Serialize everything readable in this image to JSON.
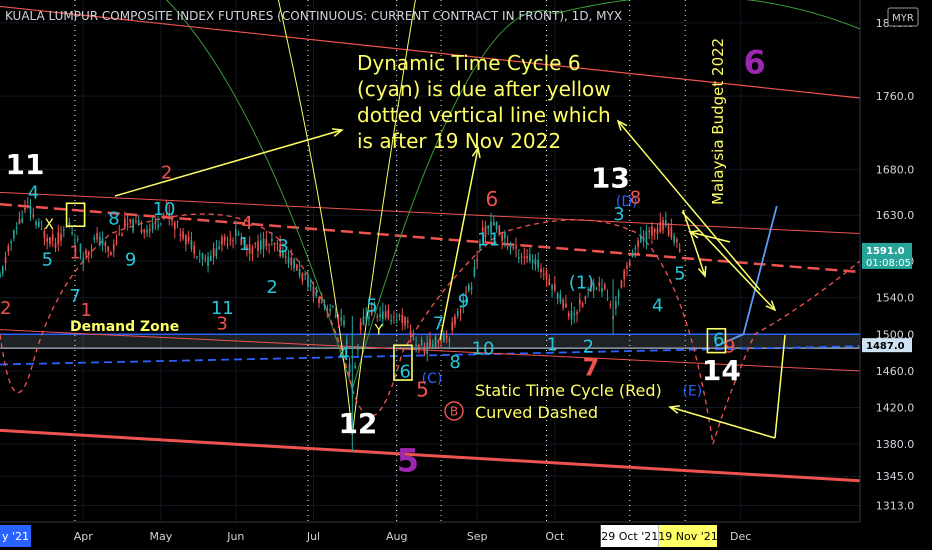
{
  "chart_data": {
    "type": "candlestick",
    "title": "KUALA LUMPUR COMPOSITE INDEX FUTURES (CONTINUOUS: CURRENT CONTRACT IN FRONT), 1D, MYX",
    "currency": "MYR",
    "ylim": [
      1295,
      1865
    ],
    "xlim": [
      0,
      310
    ],
    "y_ticks": [
      "1313.0",
      "1345.0",
      "1380.0",
      "1420.0",
      "1460.0",
      "1500.0",
      "1540.0",
      "1580.0",
      "1630.0",
      "1680.0",
      "1760.0",
      "1840.0"
    ],
    "x_ticks": [
      {
        "label": "Apr",
        "x": 30
      },
      {
        "label": "May",
        "x": 58
      },
      {
        "label": "Jun",
        "x": 85
      },
      {
        "label": "Jul",
        "x": 113
      },
      {
        "label": "Aug",
        "x": 143
      },
      {
        "label": "Sep",
        "x": 172
      },
      {
        "label": "Oct",
        "x": 200
      },
      {
        "label": "Dec",
        "x": 267
      }
    ],
    "date_badges": [
      {
        "label": "29 Oct '21",
        "x": 227,
        "fill": "#ffffff",
        "text": "#000000"
      },
      {
        "label": "19 Nov '21",
        "x": 248,
        "fill": "#ffff66",
        "text": "#000000"
      }
    ],
    "left_date_badge": {
      "label": "y '21",
      "fill": "#2962ff"
    },
    "price_labels": [
      {
        "label": "1591.0",
        "sub": "01:08:05",
        "value": 1591,
        "fill": "#26a69a"
      },
      {
        "label": "1487.0",
        "value": 1487,
        "fill": "#cfe2f3"
      }
    ],
    "candles": {
      "closes": [
        [
          0,
          1560
        ],
        [
          5,
          1610
        ],
        [
          10,
          1640
        ],
        [
          15,
          1612
        ],
        [
          20,
          1600
        ],
        [
          25,
          1620
        ],
        [
          30,
          1585
        ],
        [
          35,
          1605
        ],
        [
          40,
          1590
        ],
        [
          45,
          1620
        ],
        [
          50,
          1618
        ],
        [
          55,
          1615
        ],
        [
          60,
          1635
        ],
        [
          65,
          1612
        ],
        [
          70,
          1595
        ],
        [
          75,
          1580
        ],
        [
          80,
          1600
        ],
        [
          85,
          1610
        ],
        [
          90,
          1592
        ],
        [
          95,
          1600
        ],
        [
          100,
          1595
        ],
        [
          105,
          1580
        ],
        [
          110,
          1560
        ],
        [
          115,
          1540
        ],
        [
          120,
          1525
        ],
        [
          124,
          1510
        ],
        [
          127,
          1440
        ],
        [
          130,
          1510
        ],
        [
          134,
          1525
        ],
        [
          138,
          1520
        ],
        [
          142,
          1520
        ],
        [
          146,
          1515
        ],
        [
          150,
          1490
        ],
        [
          154,
          1485
        ],
        [
          158,
          1495
        ],
        [
          162,
          1500
        ],
        [
          166,
          1530
        ],
        [
          170,
          1555
        ],
        [
          174,
          1610
        ],
        [
          178,
          1620
        ],
        [
          182,
          1605
        ],
        [
          186,
          1590
        ],
        [
          190,
          1585
        ],
        [
          194,
          1575
        ],
        [
          198,
          1560
        ],
        [
          202,
          1540
        ],
        [
          206,
          1520
        ],
        [
          210,
          1535
        ],
        [
          214,
          1555
        ],
        [
          218,
          1550
        ],
        [
          221,
          1520
        ],
        [
          224,
          1555
        ],
        [
          228,
          1590
        ],
        [
          232,
          1605
        ],
        [
          236,
          1615
        ],
        [
          240,
          1620
        ],
        [
          244,
          1600
        ],
        [
          246,
          1591
        ]
      ]
    },
    "annotations": {
      "callout_dynamic": [
        "Dynamic Time Cycle 6",
        "(cyan) is due after yellow",
        "dotted vertical line which",
        "is after 19 Nov 2022"
      ],
      "callout_static": [
        "Static Time Cycle (Red)",
        "Curved Dashed"
      ],
      "demand_zone": "Demand Zone",
      "budget": "Malaysia Budget 2022",
      "wave_labels": [
        {
          "text": "11",
          "x": 2,
          "y": 1675,
          "color": "#ffffff",
          "size": 28
        },
        {
          "text": "4",
          "x": 10,
          "y": 1648,
          "color": "#26c6da",
          "size": 18
        },
        {
          "text": "X",
          "x": 16,
          "y": 1615,
          "color": "#ffff66",
          "size": 14
        },
        {
          "text": "5",
          "x": 15,
          "y": 1575,
          "color": "#26c6da",
          "size": 18
        },
        {
          "text": "2",
          "x": 0,
          "y": 1522,
          "color": "#ef5350",
          "size": 18
        },
        {
          "text": "7",
          "x": 25,
          "y": 1535,
          "color": "#26c6da",
          "size": 18
        },
        {
          "text": "1",
          "x": 29,
          "y": 1520,
          "color": "#ef5350",
          "size": 18
        },
        {
          "text": "1",
          "x": 25,
          "y": 1583,
          "color": "#ef5350",
          "size": 18
        },
        {
          "text": "8",
          "x": 39,
          "y": 1620,
          "color": "#26c6da",
          "size": 18
        },
        {
          "text": "2",
          "x": 58,
          "y": 1670,
          "color": "#ef5350",
          "size": 18
        },
        {
          "text": "10",
          "x": 55,
          "y": 1630,
          "color": "#26c6da",
          "size": 18
        },
        {
          "text": "9",
          "x": 45,
          "y": 1575,
          "color": "#26c6da",
          "size": 18
        },
        {
          "text": "4",
          "x": 87,
          "y": 1615,
          "color": "#ef5350",
          "size": 18
        },
        {
          "text": "1",
          "x": 86,
          "y": 1592,
          "color": "#26c6da",
          "size": 18
        },
        {
          "text": "3",
          "x": 100,
          "y": 1590,
          "color": "#26c6da",
          "size": 18
        },
        {
          "text": "2",
          "x": 96,
          "y": 1545,
          "color": "#26c6da",
          "size": 18
        },
        {
          "text": "11",
          "x": 76,
          "y": 1522,
          "color": "#26c6da",
          "size": 18
        },
        {
          "text": "3",
          "x": 78,
          "y": 1505,
          "color": "#ef5350",
          "size": 18
        },
        {
          "text": "5",
          "x": 132,
          "y": 1525,
          "color": "#26c6da",
          "size": 18
        },
        {
          "text": "Y",
          "x": 135,
          "y": 1500,
          "color": "#ffff66",
          "size": 14
        },
        {
          "text": "4",
          "x": 122,
          "y": 1472,
          "color": "#26c6da",
          "size": 18
        },
        {
          "text": "12",
          "x": 122,
          "y": 1392,
          "color": "#ffffff",
          "size": 28
        },
        {
          "text": "6",
          "x": 144,
          "y": 1453,
          "color": "#26c6da",
          "size": 18
        },
        {
          "text": "(C)",
          "x": 152,
          "y": 1447,
          "color": "#2962ff",
          "size": 14
        },
        {
          "text": "5",
          "x": 150,
          "y": 1432,
          "color": "#ef5350",
          "size": 20
        },
        {
          "text": "7",
          "x": 156,
          "y": 1505,
          "color": "#26c6da",
          "size": 18
        },
        {
          "text": "8",
          "x": 162,
          "y": 1463,
          "color": "#26c6da",
          "size": 18
        },
        {
          "text": "9",
          "x": 165,
          "y": 1530,
          "color": "#26c6da",
          "size": 18
        },
        {
          "text": "10",
          "x": 170,
          "y": 1478,
          "color": "#26c6da",
          "size": 18
        },
        {
          "text": "11",
          "x": 172,
          "y": 1597,
          "color": "#26c6da",
          "size": 18
        },
        {
          "text": "6",
          "x": 175,
          "y": 1640,
          "color": "#ef5350",
          "size": 20
        },
        {
          "text": "1",
          "x": 197,
          "y": 1482,
          "color": "#26c6da",
          "size": 18
        },
        {
          "text": "2",
          "x": 210,
          "y": 1480,
          "color": "#26c6da",
          "size": 18
        },
        {
          "text": "7",
          "x": 210,
          "y": 1455,
          "color": "#ef5350",
          "size": 24
        },
        {
          "text": "(1)",
          "x": 205,
          "y": 1550,
          "color": "#26c6da",
          "size": 18
        },
        {
          "text": "13",
          "x": 213,
          "y": 1660,
          "color": "#ffffff",
          "size": 28
        },
        {
          "text": "(D)",
          "x": 222,
          "y": 1640,
          "color": "#2962ff",
          "size": 14
        },
        {
          "text": "8",
          "x": 227,
          "y": 1643,
          "color": "#ef5350",
          "size": 18
        },
        {
          "text": "3",
          "x": 221,
          "y": 1625,
          "color": "#26c6da",
          "size": 18
        },
        {
          "text": "5",
          "x": 243,
          "y": 1560,
          "color": "#26c6da",
          "size": 18
        },
        {
          "text": "4",
          "x": 235,
          "y": 1525,
          "color": "#26c6da",
          "size": 18
        },
        {
          "text": "(E)",
          "x": 246,
          "y": 1433,
          "color": "#2962ff",
          "size": 14
        },
        {
          "text": "6",
          "x": 257,
          "y": 1488,
          "color": "#26c6da",
          "size": 18
        },
        {
          "text": "9",
          "x": 261,
          "y": 1480,
          "color": "#ef5350",
          "size": 18
        },
        {
          "text": "14",
          "x": 253,
          "y": 1450,
          "color": "#ffffff",
          "size": 28
        },
        {
          "text": "6",
          "x": 268,
          "y": 1785,
          "color": "#9c27b0",
          "size": 32
        },
        {
          "text": "5",
          "x": 143,
          "y": 1350,
          "color": "#9c27b0",
          "size": 32
        }
      ]
    }
  }
}
